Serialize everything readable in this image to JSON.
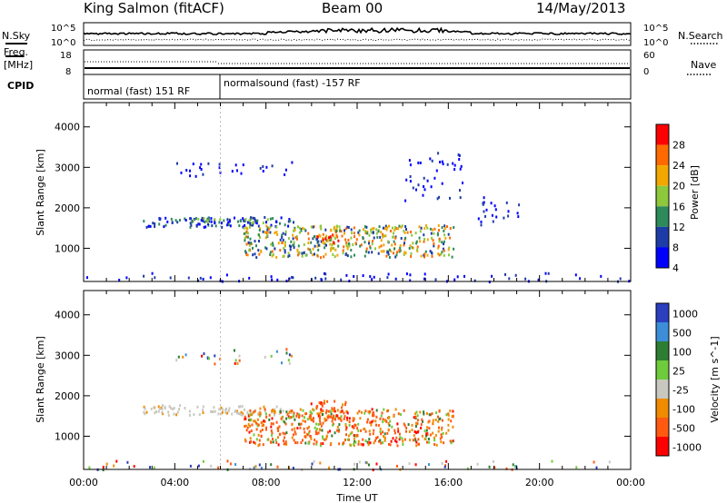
{
  "header": {
    "site": "King Salmon (fitACF)",
    "beam": "Beam 00",
    "date": "14/May/2013"
  },
  "summary_panel": {
    "nsky_label": "N.Sky",
    "nsky_ticks": [
      "10^5",
      "10^0"
    ],
    "nsearch_label": "N.Search",
    "nsearch_ticks": [
      "10^5",
      "10^0"
    ],
    "freq_label": "Freq.",
    "freq_unit": "[MHz]",
    "freq_ticks": [
      "18",
      "8"
    ],
    "nave_label": "Nave",
    "nave_ticks": [
      "60",
      "0"
    ],
    "cpid_label": "CPID",
    "cpid_segments": [
      {
        "label": "normal (fast) 151 RF",
        "start_hour": 0,
        "end_hour": 6
      },
      {
        "label": "normalsound (fast) -157 RF",
        "start_hour": 6,
        "end_hour": 24
      }
    ]
  },
  "chart_data": [
    {
      "type": "heatmap",
      "parameter": "power",
      "xlabel": "",
      "ylabel": "Slant Range [km]",
      "xlim": [
        0,
        24
      ],
      "ylim": [
        180,
        4600
      ],
      "yticks": [
        "1000",
        "2000",
        "3000",
        "4000"
      ],
      "colorbar": {
        "label": "Power [dB]",
        "ticks": [
          "28",
          "24",
          "20",
          "16",
          "12",
          "8",
          "4"
        ],
        "colors": [
          "#ff0000",
          "#ff6a00",
          "#f2a800",
          "#8ec83c",
          "#2e8a5a",
          "#1e3ca8",
          "#0000ff"
        ]
      },
      "regions": [
        {
          "x": [
            2.6,
            9.2
          ],
          "y": [
            1550,
            1800
          ],
          "level": "low-mid"
        },
        {
          "x": [
            4.6,
            8.4
          ],
          "y": [
            1650,
            1780
          ],
          "level": "mid"
        },
        {
          "x": [
            3.8,
            9.2
          ],
          "y": [
            2800,
            3200
          ],
          "level": "low"
        },
        {
          "x": [
            7.0,
            16.2
          ],
          "y": [
            800,
            1600
          ],
          "level": "mid-high"
        },
        {
          "x": [
            10.2,
            11.2
          ],
          "y": [
            1100,
            1400
          ],
          "level": "high"
        },
        {
          "x": [
            14.0,
            16.6
          ],
          "y": [
            2200,
            3400
          ],
          "level": "low"
        },
        {
          "x": [
            17.2,
            19.5
          ],
          "y": [
            1550,
            2300
          ],
          "level": "low"
        },
        {
          "x": [
            0,
            24
          ],
          "y": [
            200,
            420
          ],
          "level": "low"
        }
      ]
    },
    {
      "type": "heatmap",
      "parameter": "velocity",
      "xlabel": "Time UT",
      "ylabel": "Slant Range [km]",
      "xlim": [
        0,
        24
      ],
      "ylim": [
        180,
        4600
      ],
      "xticks": [
        "00:00",
        "04:00",
        "08:00",
        "12:00",
        "16:00",
        "20:00",
        "00:00"
      ],
      "yticks": [
        "1000",
        "2000",
        "3000",
        "4000"
      ],
      "colorbar": {
        "label": "Velocity [m s^-1]",
        "ticks": [
          "1000",
          "500",
          "100",
          "25",
          "-25",
          "-100",
          "-500",
          "-1000"
        ],
        "colors": [
          "#2b3fbf",
          "#3c8ed8",
          "#2e7d32",
          "#6ecb3c",
          "#c8c8c0",
          "#f08b00",
          "#ff5a10",
          "#ff0000"
        ]
      },
      "regions": [
        {
          "x": [
            2.6,
            9.2
          ],
          "y": [
            1550,
            1800
          ],
          "level": "ground-scatter"
        },
        {
          "x": [
            7.0,
            16.2
          ],
          "y": [
            800,
            1700
          ],
          "level": "negative"
        },
        {
          "x": [
            9.8,
            11.6
          ],
          "y": [
            1400,
            1900
          ],
          "level": "strong-negative"
        },
        {
          "x": [
            3.8,
            9.2
          ],
          "y": [
            2800,
            3200
          ],
          "level": "mixed"
        },
        {
          "x": [
            0,
            24
          ],
          "y": [
            200,
            420
          ],
          "level": "mixed"
        }
      ]
    }
  ]
}
